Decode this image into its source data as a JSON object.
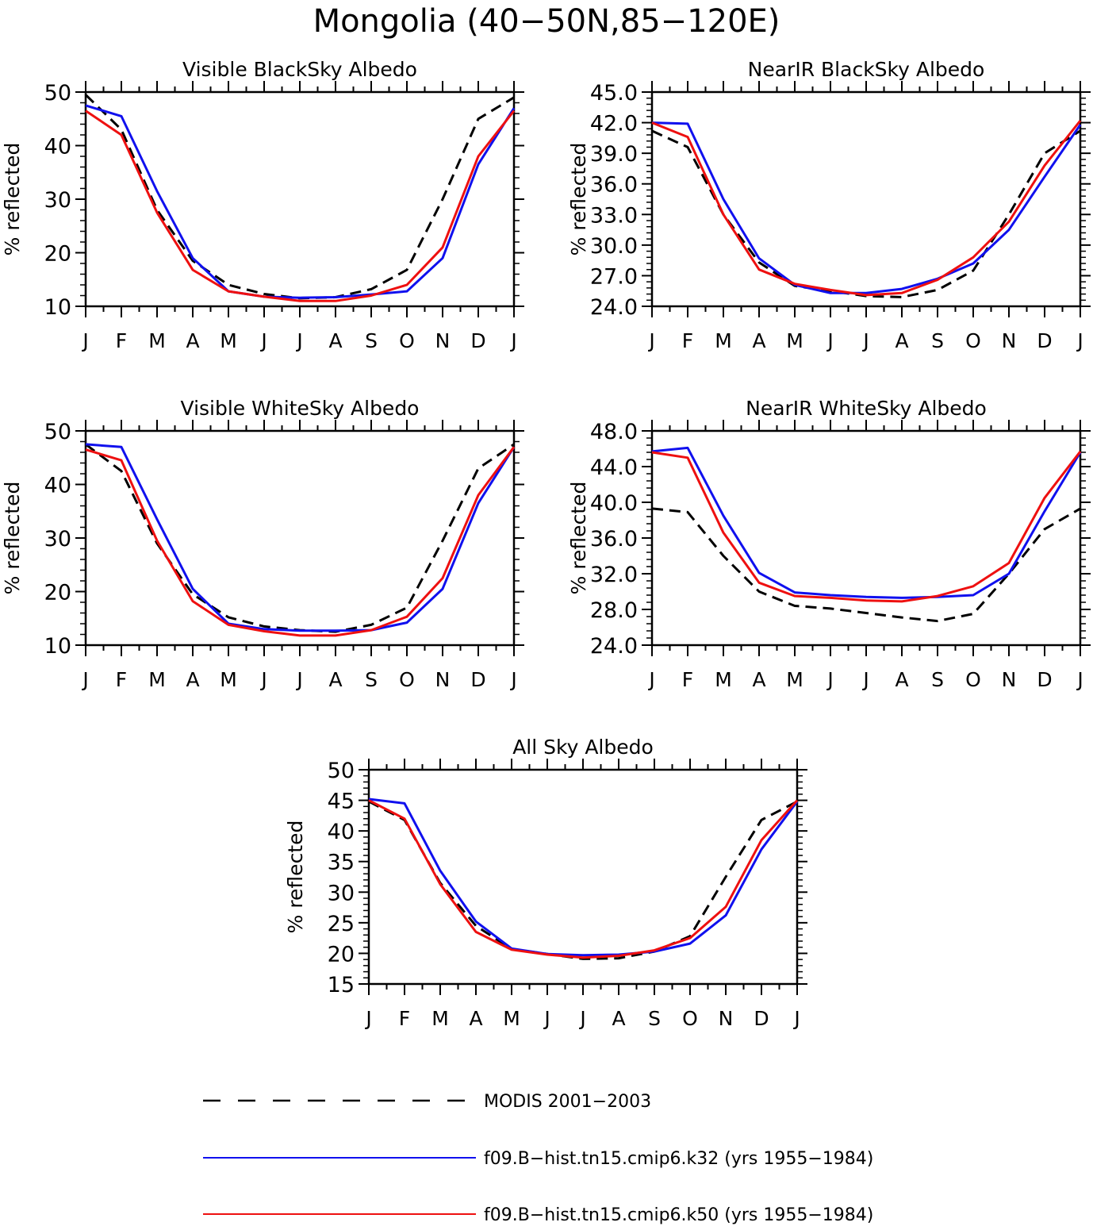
{
  "figure_title": "Mongolia (40−50N,85−120E)",
  "colors": {
    "modis": "#000000",
    "k32": "#1010ee",
    "k50": "#ee1010",
    "axis": "#000000"
  },
  "legend": {
    "entries": [
      {
        "label": "MODIS 2001−2003",
        "series": "modis",
        "style": "dashed"
      },
      {
        "label": "f09.B−hist.tn15.cmip6.k32 (yrs 1955−1984)",
        "series": "k32",
        "style": "solid"
      },
      {
        "label": "f09.B−hist.tn15.cmip6.k50 (yrs 1955−1984)",
        "series": "k50",
        "style": "solid"
      }
    ]
  },
  "chart_data": [
    {
      "type": "line",
      "title": "Visible BlackSky Albedo",
      "ylabel": "% reflected",
      "xlabel": "",
      "categories": [
        "J",
        "F",
        "M",
        "A",
        "M",
        "J",
        "J",
        "A",
        "S",
        "O",
        "N",
        "D",
        "J"
      ],
      "ylim": [
        10,
        50
      ],
      "yticks": [
        "10",
        "20",
        "30",
        "40",
        "50"
      ],
      "grid": false,
      "series": [
        {
          "key": "modis",
          "values": [
            49.5,
            43.0,
            28.0,
            18.5,
            14.0,
            12.3,
            11.5,
            11.7,
            13.2,
            16.8,
            30.0,
            45.0,
            49.0
          ]
        },
        {
          "key": "k32",
          "values": [
            47.5,
            45.5,
            31.5,
            19.0,
            12.8,
            11.8,
            11.6,
            11.7,
            12.2,
            12.8,
            19.0,
            36.5,
            47.0
          ]
        },
        {
          "key": "k50",
          "values": [
            46.5,
            42.0,
            27.5,
            16.8,
            12.8,
            11.8,
            11.0,
            11.0,
            12.0,
            14.0,
            21.0,
            38.0,
            46.5
          ]
        }
      ]
    },
    {
      "type": "line",
      "title": "NearIR BlackSky Albedo",
      "ylabel": "% reflected",
      "xlabel": "",
      "categories": [
        "J",
        "F",
        "M",
        "A",
        "M",
        "J",
        "J",
        "A",
        "S",
        "O",
        "N",
        "D",
        "J"
      ],
      "ylim": [
        24,
        45
      ],
      "yticks": [
        "24.0",
        "27.0",
        "30.0",
        "33.0",
        "36.0",
        "39.0",
        "42.0",
        "45.0"
      ],
      "grid": false,
      "series": [
        {
          "key": "modis",
          "values": [
            41.2,
            39.6,
            33.0,
            28.3,
            26.0,
            25.5,
            25.0,
            24.9,
            25.6,
            27.5,
            33.0,
            39.0,
            41.2
          ]
        },
        {
          "key": "k32",
          "values": [
            42.0,
            41.9,
            34.5,
            28.7,
            26.1,
            25.3,
            25.3,
            25.7,
            26.7,
            28.2,
            31.5,
            36.7,
            41.8
          ]
        },
        {
          "key": "k50",
          "values": [
            42.0,
            40.6,
            33.0,
            27.6,
            26.2,
            25.6,
            25.1,
            25.3,
            26.6,
            28.8,
            32.3,
            37.8,
            42.2
          ]
        }
      ]
    },
    {
      "type": "line",
      "title": "Visible WhiteSky Albedo",
      "ylabel": "% reflected",
      "xlabel": "",
      "categories": [
        "J",
        "F",
        "M",
        "A",
        "M",
        "J",
        "J",
        "A",
        "S",
        "O",
        "N",
        "D",
        "J"
      ],
      "ylim": [
        10,
        50
      ],
      "yticks": [
        "10",
        "20",
        "30",
        "40",
        "50"
      ],
      "grid": false,
      "series": [
        {
          "key": "modis",
          "values": [
            47.5,
            42.5,
            29.0,
            19.5,
            15.2,
            13.5,
            12.8,
            12.5,
            13.8,
            17.0,
            29.5,
            43.0,
            47.5
          ]
        },
        {
          "key": "k32",
          "values": [
            47.5,
            47.0,
            33.5,
            20.5,
            14.0,
            13.0,
            12.7,
            12.7,
            12.8,
            14.2,
            20.5,
            36.5,
            47.0
          ]
        },
        {
          "key": "k50",
          "values": [
            46.5,
            44.5,
            29.5,
            18.2,
            13.8,
            12.6,
            11.8,
            11.8,
            12.8,
            15.3,
            22.5,
            38.0,
            47.0
          ]
        }
      ]
    },
    {
      "type": "line",
      "title": "NearIR WhiteSky Albedo",
      "ylabel": "% reflected",
      "xlabel": "",
      "categories": [
        "J",
        "F",
        "M",
        "A",
        "M",
        "J",
        "J",
        "A",
        "S",
        "O",
        "N",
        "D",
        "J"
      ],
      "ylim": [
        24,
        48
      ],
      "yticks": [
        "24.0",
        "28.0",
        "32.0",
        "36.0",
        "40.0",
        "44.0",
        "48.0"
      ],
      "grid": false,
      "series": [
        {
          "key": "modis",
          "values": [
            39.3,
            38.9,
            34.0,
            30.0,
            28.4,
            28.1,
            27.6,
            27.1,
            26.7,
            27.5,
            32.0,
            37.0,
            39.3
          ]
        },
        {
          "key": "k32",
          "values": [
            45.7,
            46.1,
            38.5,
            32.1,
            29.9,
            29.6,
            29.4,
            29.3,
            29.4,
            29.6,
            32.0,
            39.0,
            45.6
          ]
        },
        {
          "key": "k50",
          "values": [
            45.6,
            45.0,
            36.6,
            31.0,
            29.5,
            29.3,
            29.0,
            28.9,
            29.5,
            30.6,
            33.2,
            40.5,
            45.7
          ]
        }
      ]
    },
    {
      "type": "line",
      "title": "All Sky Albedo",
      "ylabel": "% reflected",
      "xlabel": "",
      "categories": [
        "J",
        "F",
        "M",
        "A",
        "M",
        "J",
        "J",
        "A",
        "S",
        "O",
        "N",
        "D",
        "J"
      ],
      "ylim": [
        15,
        50
      ],
      "yticks": [
        "15",
        "20",
        "25",
        "30",
        "35",
        "40",
        "45",
        "50"
      ],
      "grid": false,
      "series": [
        {
          "key": "modis",
          "values": [
            44.8,
            41.8,
            31.5,
            24.5,
            20.7,
            19.9,
            19.1,
            19.2,
            20.3,
            22.8,
            32.5,
            41.8,
            44.8
          ]
        },
        {
          "key": "k32",
          "values": [
            45.2,
            44.5,
            33.5,
            25.2,
            20.8,
            19.9,
            19.7,
            19.8,
            20.3,
            21.6,
            26.2,
            37.0,
            44.8
          ]
        },
        {
          "key": "k50",
          "values": [
            45.0,
            42.0,
            31.3,
            23.5,
            20.6,
            19.8,
            19.3,
            19.6,
            20.5,
            22.5,
            27.6,
            38.5,
            45.0
          ]
        }
      ]
    }
  ]
}
